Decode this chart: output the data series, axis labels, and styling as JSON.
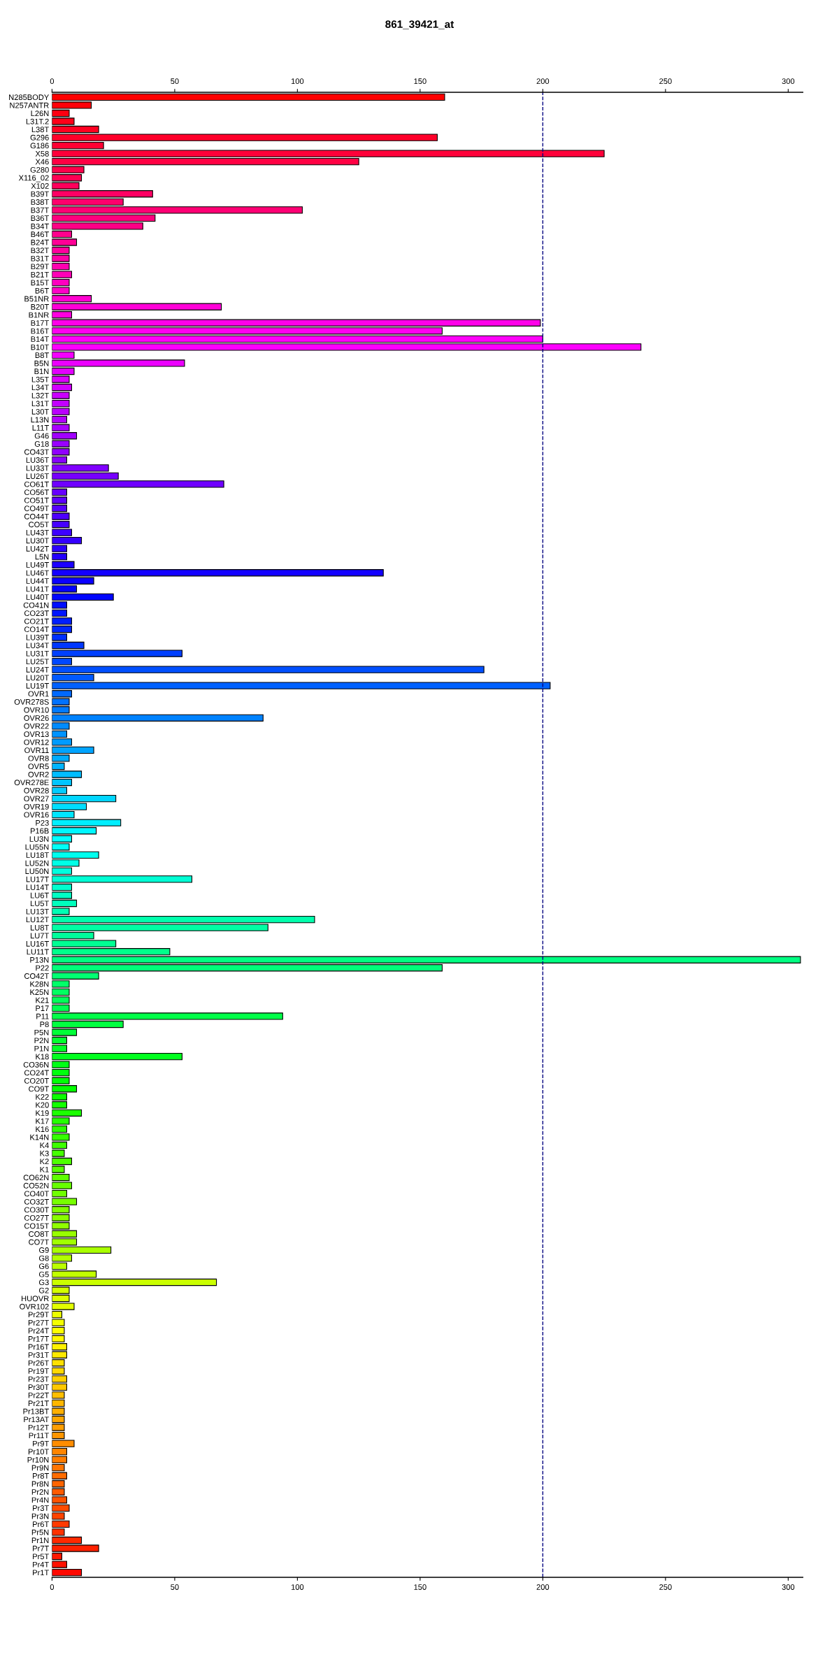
{
  "chart_data": {
    "type": "bar",
    "orientation": "horizontal",
    "title": "861_39421_at",
    "categories": [
      "N285BODY",
      "N257ANTR",
      "L26N",
      "L31T.2",
      "L38T",
      "G296",
      "G186",
      "X58",
      "X46",
      "G280",
      "X116_02",
      "X102",
      "B39T",
      "B38T",
      "B37T",
      "B36T",
      "B34T",
      "B46T",
      "B24T",
      "B32T",
      "B31T",
      "B29T",
      "B21T",
      "B15T",
      "B6T",
      "B51NR",
      "B20T",
      "B1NR",
      "B17T",
      "B16T",
      "B14T",
      "B10T",
      "B8T",
      "B5N",
      "B1N",
      "L35T",
      "L34T",
      "L32T",
      "L31T",
      "L30T",
      "L13N",
      "L11T",
      "G46",
      "G18",
      "CO43T",
      "LU36T",
      "LU33T",
      "LU26T",
      "CO61T",
      "CO56T",
      "CO51T",
      "CO49T",
      "CO44T",
      "CO5T",
      "LU43T",
      "LU30T",
      "LU42T",
      "L5N",
      "LU49T",
      "LU46T",
      "LU44T",
      "LU41T",
      "LU40T",
      "CO41N",
      "CO23T",
      "CO21T",
      "CO14T",
      "LU39T",
      "LU34T",
      "LU31T",
      "LU25T",
      "LU24T",
      "LU20T",
      "LU19T",
      "OVR1",
      "OVR278S",
      "OVR10",
      "OVR26",
      "OVR22",
      "OVR13",
      "OVR12",
      "OVR11",
      "OVR8",
      "OVR5",
      "OVR2",
      "OVR278E",
      "OVR28",
      "OVR27",
      "OVR19",
      "OVR16",
      "P23",
      "P16B",
      "LU3N",
      "LU55N",
      "LU18T",
      "LU52N",
      "LU50N",
      "LU17T",
      "LU14T",
      "LU6T",
      "LU5T",
      "LU13T",
      "LU12T",
      "LU8T",
      "LU7T",
      "LU16T",
      "LU11T",
      "P13N",
      "P22",
      "CO42T",
      "K28N",
      "K25N",
      "K21",
      "P17",
      "P11",
      "P8",
      "P5N",
      "P2N",
      "P1N",
      "K18",
      "CO36N",
      "CO24T",
      "CO20T",
      "CO9T",
      "K22",
      "K20",
      "K19",
      "K17",
      "K16",
      "K14N",
      "K4",
      "K3",
      "K2",
      "K1",
      "CO62N",
      "CO52N",
      "CO40T",
      "CO32T",
      "CO30T",
      "CO27T",
      "CO15T",
      "CO8T",
      "CO7T",
      "G9",
      "G8",
      "G6",
      "G5",
      "G3",
      "G2",
      "HUOVR",
      "OVR102",
      "Pr29T",
      "Pr27T",
      "Pr24T",
      "Pr17T",
      "Pr16T",
      "Pr31T",
      "Pr26T",
      "Pr19T",
      "Pr23T",
      "Pr30T",
      "Pr22T",
      "Pr21T",
      "Pr13BT",
      "Pr13AT",
      "Pr12T",
      "Pr11T",
      "Pr9T",
      "Pr10T",
      "Pr10N",
      "Pr9N",
      "Pr8T",
      "Pr8N",
      "Pr2N",
      "Pr4N",
      "Pr3T",
      "Pr3N",
      "Pr6T",
      "Pr5N",
      "Pr1N",
      "Pr7T",
      "Pr5T",
      "Pr4T",
      "Pr1T"
    ],
    "values": [
      160,
      16,
      7,
      9,
      19,
      157,
      21,
      225,
      125,
      13,
      12,
      11,
      41,
      29,
      102,
      42,
      37,
      8,
      10,
      7,
      7,
      7,
      8,
      7,
      7,
      16,
      69,
      8,
      199,
      159,
      200,
      240,
      9,
      54,
      9,
      7,
      8,
      7,
      7,
      7,
      6,
      7,
      10,
      7,
      7,
      6,
      23,
      27,
      70,
      6,
      6,
      6,
      7,
      7,
      8,
      12,
      6,
      6,
      9,
      135,
      17,
      10,
      25,
      6,
      6,
      8,
      8,
      6,
      13,
      53,
      8,
      176,
      17,
      203,
      8,
      7,
      7,
      86,
      7,
      6,
      8,
      17,
      7,
      5,
      12,
      8,
      6,
      26,
      14,
      9,
      28,
      18,
      8,
      7,
      19,
      11,
      8,
      57,
      8,
      8,
      10,
      7,
      107,
      88,
      17,
      26,
      48,
      305,
      159,
      19,
      7,
      7,
      7,
      7,
      94,
      29,
      10,
      6,
      6,
      53,
      7,
      7,
      7,
      10,
      6,
      6,
      12,
      7,
      6,
      7,
      6,
      5,
      8,
      5,
      7,
      8,
      6,
      10,
      7,
      7,
      7,
      10,
      10,
      24,
      8,
      6,
      18,
      67,
      7,
      7,
      9,
      4,
      5,
      5,
      5,
      6,
      6,
      5,
      5,
      6,
      6,
      5,
      5,
      5,
      5,
      5,
      5,
      9,
      6,
      6,
      5,
      6,
      5,
      5,
      6,
      7,
      5,
      7,
      5,
      12,
      19,
      4,
      6,
      12
    ],
    "colors": [
      "#FF0000",
      "#FF0008",
      "#FF0011",
      "#FF0019",
      "#FF0021",
      "#FF002A",
      "#FF0032",
      "#FF003A",
      "#FF0043",
      "#FF004B",
      "#FF0053",
      "#FF005B",
      "#FF0064",
      "#FF006C",
      "#FF0074",
      "#FF007D",
      "#FF0085",
      "#FF008D",
      "#FF0096",
      "#FF009E",
      "#FF00A6",
      "#FF00AF",
      "#FF00B7",
      "#FF00BF",
      "#FF00C8",
      "#FF00D0",
      "#FF00D8",
      "#FF00E0",
      "#FF00E9",
      "#FF00F1",
      "#FF00F9",
      "#FC00FF",
      "#F400FF",
      "#EC00FF",
      "#E300FF",
      "#DB00FF",
      "#D300FF",
      "#CA00FF",
      "#C200FF",
      "#BA00FF",
      "#B100FF",
      "#A900FF",
      "#A100FF",
      "#9800FF",
      "#9000FF",
      "#8800FF",
      "#8000FF",
      "#7700FF",
      "#6F00FF",
      "#6700FF",
      "#5E00FF",
      "#5600FF",
      "#4E00FF",
      "#4500FF",
      "#3D00FF",
      "#3500FF",
      "#2C00FF",
      "#2400FF",
      "#1C00FF",
      "#1300FF",
      "#0B00FF",
      "#0300FF",
      "#0006FF",
      "#000EFF",
      "#0016FF",
      "#001FFF",
      "#0027FF",
      "#002FFF",
      "#0037FF",
      "#0040FF",
      "#0048FF",
      "#0050FF",
      "#0059FF",
      "#0061FF",
      "#0069FF",
      "#0072FF",
      "#007AFF",
      "#0082FF",
      "#008BFF",
      "#0093FF",
      "#009BFF",
      "#00A4FF",
      "#00ACFF",
      "#00B4FF",
      "#00BDFF",
      "#00C5FF",
      "#00CDFF",
      "#00D6FF",
      "#00DEFF",
      "#00E6FF",
      "#00EFFF",
      "#00F7FF",
      "#00FFFF",
      "#00FFF7",
      "#00FFEE",
      "#00FFE6",
      "#00FFDE",
      "#00FFD5",
      "#00FFCD",
      "#00FFC5",
      "#00FFBC",
      "#00FFB4",
      "#00FFAC",
      "#00FFA4",
      "#00FF9B",
      "#00FF93",
      "#00FF8B",
      "#00FF82",
      "#00FF7A",
      "#00FF72",
      "#00FF69",
      "#00FF61",
      "#00FF59",
      "#00FF50",
      "#00FF48",
      "#00FF40",
      "#00FF38",
      "#00FF2F",
      "#00FF27",
      "#00FF1F",
      "#00FF16",
      "#00FF0E",
      "#00FF06",
      "#03FF00",
      "#0BFF00",
      "#13FF00",
      "#1CFF00",
      "#24FF00",
      "#2CFF00",
      "#35FF00",
      "#3DFF00",
      "#45FF00",
      "#4EFF00",
      "#56FF00",
      "#5EFF00",
      "#67FF00",
      "#6FFF00",
      "#77FF00",
      "#80FF00",
      "#88FF00",
      "#90FF00",
      "#98FF00",
      "#A1FF00",
      "#A9FF00",
      "#B1FF00",
      "#BAFF00",
      "#C2FF00",
      "#CAFF00",
      "#D3FF00",
      "#DBFF00",
      "#E3FF00",
      "#ECFF00",
      "#F4FF00",
      "#FCFF00",
      "#FFF900",
      "#FFF100",
      "#FFE900",
      "#FFE000",
      "#FFD800",
      "#FFD000",
      "#FFC800",
      "#FFBF00",
      "#FFB700",
      "#FFAF00",
      "#FFA600",
      "#FF9E00",
      "#FF9600",
      "#FF8D00",
      "#FF8500",
      "#FF7D00",
      "#FF7400",
      "#FF6C00",
      "#FF6400",
      "#FF5B00",
      "#FF5300",
      "#FF4B00",
      "#FF4300",
      "#FF3A00",
      "#FF3200",
      "#FF2A00",
      "#FF2100",
      "#FF1900",
      "#FF1100",
      "#FF0800"
    ],
    "xlim": [
      0,
      306
    ],
    "xticks": [
      0,
      50,
      100,
      150,
      200,
      250,
      300
    ],
    "x2lim": [
      0,
      306
    ],
    "x2ticks": [
      0,
      50,
      100,
      150,
      200,
      250,
      300
    ],
    "ref_lines": [
      {
        "axis": "x",
        "value": 200,
        "color": "#000080",
        "line_style": "dashed"
      }
    ],
    "grid": false,
    "legend": false
  }
}
